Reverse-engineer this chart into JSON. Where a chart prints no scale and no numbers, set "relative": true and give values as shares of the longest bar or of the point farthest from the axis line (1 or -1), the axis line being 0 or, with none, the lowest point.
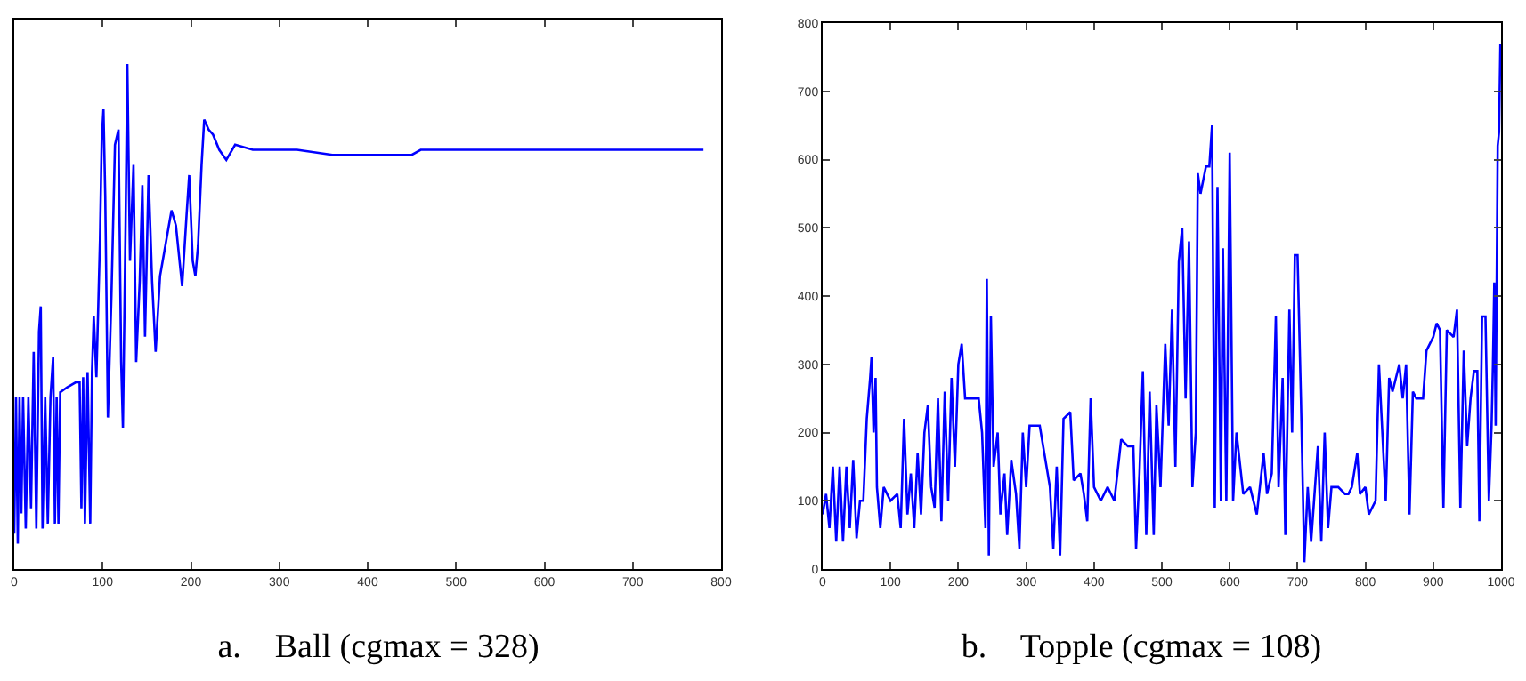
{
  "chart_data": [
    {
      "type": "line",
      "title": "a.    Ball (cgmax = 328)",
      "relative": true,
      "tick_labels": "x",
      "xlim": [
        0,
        800
      ],
      "xticks": [
        0,
        100,
        200,
        300,
        400,
        500,
        600,
        700,
        800
      ],
      "series": [
        {
          "color": "#0000ff",
          "x": [
            0,
            2,
            4,
            6,
            8,
            10,
            13,
            16,
            19,
            22,
            25,
            28,
            30,
            32,
            35,
            38,
            41,
            44,
            46,
            48,
            50,
            52,
            60,
            70,
            74,
            76,
            78,
            80,
            83,
            86,
            88,
            90,
            93,
            97,
            99,
            101,
            103,
            106,
            110,
            114,
            118,
            121,
            123,
            126,
            128,
            131,
            135,
            138,
            142,
            145,
            148,
            152,
            156,
            160,
            165,
            170,
            175,
            178,
            183,
            190,
            195,
            198,
            202,
            205,
            208,
            212,
            215,
            220,
            225,
            232,
            240,
            250,
            270,
            300,
            320,
            360,
            400,
            450,
            460,
            500,
            550,
            600,
            650,
            700,
            730,
            760,
            775,
            780
          ],
          "values": [
            0.07,
            0.34,
            0.05,
            0.34,
            0.11,
            0.34,
            0.08,
            0.34,
            0.12,
            0.43,
            0.08,
            0.47,
            0.52,
            0.08,
            0.34,
            0.09,
            0.34,
            0.42,
            0.09,
            0.34,
            0.09,
            0.35,
            0.36,
            0.37,
            0.37,
            0.12,
            0.38,
            0.09,
            0.39,
            0.09,
            0.39,
            0.5,
            0.38,
            0.65,
            0.85,
            0.91,
            0.74,
            0.3,
            0.54,
            0.84,
            0.87,
            0.41,
            0.28,
            0.68,
            1,
            0.61,
            0.8,
            0.41,
            0.57,
            0.76,
            0.46,
            0.78,
            0.57,
            0.43,
            0.58,
            0.63,
            0.68,
            0.71,
            0.68,
            0.56,
            0.7,
            0.78,
            0.61,
            0.58,
            0.64,
            0.8,
            0.89,
            0.87,
            0.86,
            0.83,
            0.81,
            0.84,
            0.83,
            0.83,
            0.83,
            0.82,
            0.82,
            0.82,
            0.83,
            0.83,
            0.83,
            0.83,
            0.83,
            0.83,
            0.83,
            0.83,
            0.83,
            0.83
          ]
        }
      ]
    },
    {
      "type": "line",
      "title": "b.    Topple (cgmax = 108)",
      "xlim": [
        0,
        1000
      ],
      "xticks": [
        0,
        100,
        200,
        300,
        400,
        500,
        600,
        700,
        800,
        900,
        1000
      ],
      "ylim": [
        0,
        800
      ],
      "yticks": [
        0,
        100,
        200,
        300,
        400,
        500,
        600,
        700,
        800
      ],
      "series": [
        {
          "color": "#0000ff",
          "x": [
            0,
            5,
            10,
            15,
            20,
            25,
            30,
            35,
            40,
            45,
            50,
            55,
            60,
            65,
            70,
            72,
            75,
            78,
            80,
            85,
            90,
            100,
            110,
            115,
            120,
            125,
            130,
            135,
            140,
            145,
            150,
            155,
            160,
            165,
            170,
            175,
            180,
            185,
            190,
            195,
            200,
            205,
            210,
            220,
            230,
            235,
            240,
            242,
            245,
            248,
            252,
            258,
            262,
            268,
            272,
            278,
            285,
            290,
            295,
            300,
            305,
            320,
            335,
            340,
            345,
            350,
            355,
            365,
            370,
            380,
            385,
            390,
            395,
            400,
            410,
            420,
            430,
            440,
            450,
            458,
            462,
            467,
            472,
            477,
            482,
            488,
            492,
            498,
            505,
            510,
            515,
            520,
            525,
            530,
            535,
            540,
            545,
            550,
            553,
            557,
            565,
            570,
            574,
            578,
            582,
            587,
            590,
            595,
            600,
            605,
            610,
            620,
            630,
            640,
            650,
            655,
            662,
            668,
            672,
            678,
            682,
            688,
            692,
            696,
            700,
            705,
            710,
            715,
            720,
            725,
            730,
            735,
            740,
            745,
            750,
            760,
            770,
            775,
            780,
            788,
            792,
            800,
            805,
            815,
            820,
            830,
            835,
            840,
            850,
            855,
            860,
            865,
            870,
            875,
            885,
            890,
            900,
            905,
            910,
            915,
            920,
            930,
            935,
            940,
            945,
            950,
            955,
            960,
            965,
            968,
            972,
            977,
            982,
            986,
            988,
            990,
            992,
            995,
            997,
            999
          ],
          "values": [
            80,
            110,
            60,
            150,
            40,
            150,
            40,
            150,
            60,
            160,
            45,
            100,
            100,
            220,
            280,
            310,
            200,
            280,
            120,
            60,
            120,
            100,
            110,
            60,
            220,
            80,
            140,
            60,
            170,
            80,
            200,
            240,
            120,
            90,
            250,
            70,
            260,
            100,
            280,
            150,
            300,
            330,
            250,
            250,
            250,
            200,
            60,
            425,
            20,
            370,
            150,
            200,
            80,
            140,
            50,
            160,
            110,
            30,
            200,
            120,
            210,
            210,
            120,
            30,
            150,
            20,
            220,
            230,
            130,
            140,
            110,
            70,
            250,
            120,
            100,
            120,
            100,
            190,
            180,
            180,
            30,
            140,
            290,
            50,
            260,
            50,
            240,
            120,
            330,
            210,
            380,
            150,
            450,
            500,
            250,
            480,
            120,
            200,
            580,
            550,
            590,
            590,
            650,
            90,
            560,
            100,
            470,
            100,
            610,
            100,
            200,
            110,
            120,
            80,
            170,
            110,
            140,
            370,
            120,
            280,
            50,
            380,
            200,
            460,
            460,
            250,
            10,
            120,
            40,
            110,
            180,
            40,
            200,
            60,
            120,
            120,
            110,
            110,
            120,
            170,
            110,
            120,
            80,
            100,
            300,
            100,
            280,
            260,
            300,
            250,
            300,
            80,
            260,
            250,
            250,
            320,
            340,
            360,
            350,
            90,
            350,
            340,
            380,
            90,
            320,
            180,
            250,
            290,
            290,
            70,
            370,
            370,
            100,
            210,
            300,
            420,
            210,
            620,
            640,
            770
          ]
        }
      ]
    }
  ]
}
